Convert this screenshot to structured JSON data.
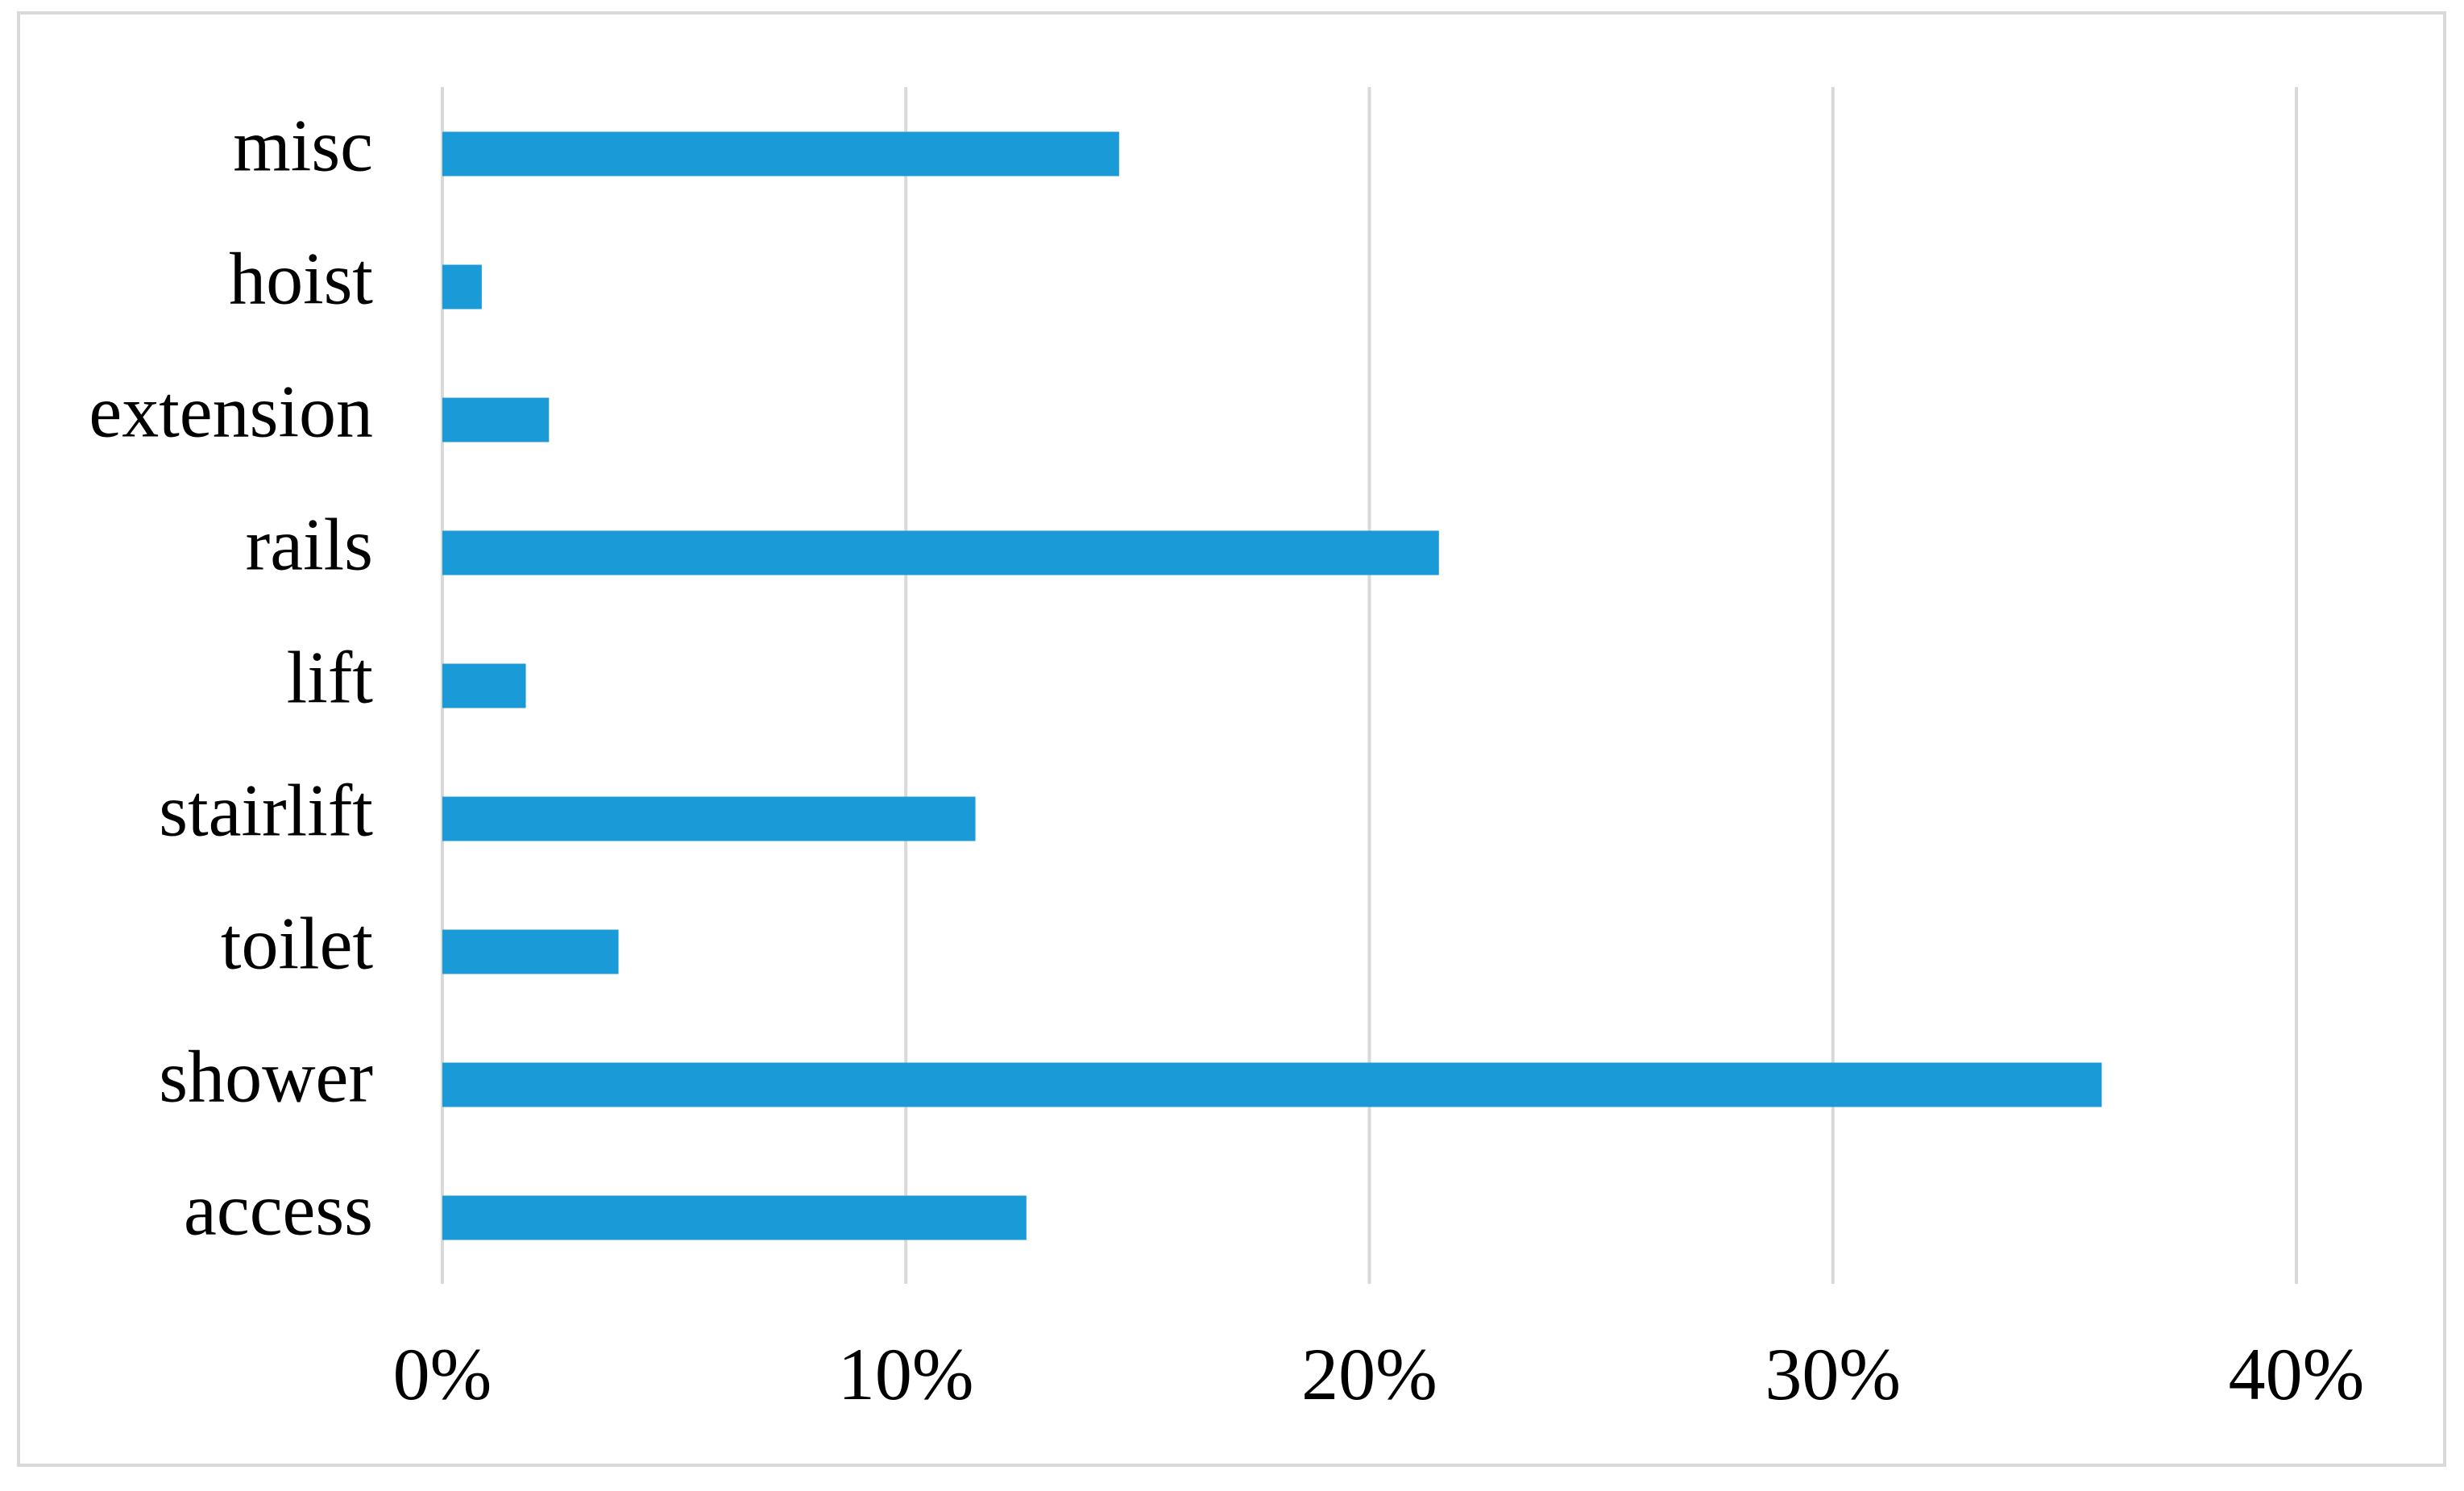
{
  "chart_data": {
    "type": "bar",
    "orientation": "horizontal",
    "categories": [
      "access",
      "shower",
      "toilet",
      "stairlift",
      "lift",
      "rails",
      "extension",
      "hoist",
      "misc"
    ],
    "values": [
      12.6,
      35.8,
      3.8,
      11.5,
      1.8,
      21.5,
      2.3,
      0.85,
      14.6
    ],
    "color": "#1a9ad6",
    "xlim": [
      0,
      40
    ],
    "xticks": [
      {
        "value": 0,
        "label": "0%"
      },
      {
        "value": 10,
        "label": "10%"
      },
      {
        "value": 20,
        "label": "20%"
      },
      {
        "value": 30,
        "label": "30%"
      },
      {
        "value": 40,
        "label": "40%"
      }
    ],
    "grid": true
  }
}
